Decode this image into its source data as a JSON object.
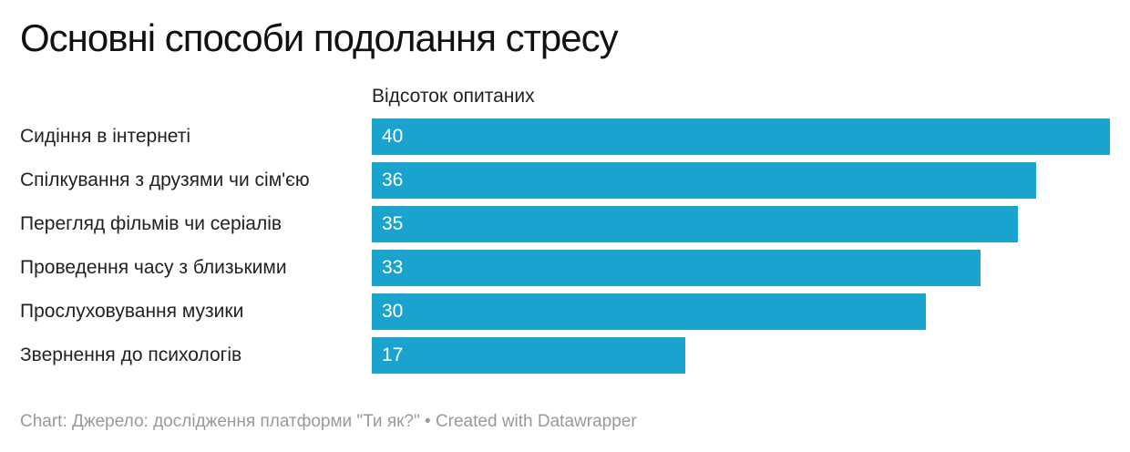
{
  "chart_data": {
    "type": "bar",
    "orientation": "horizontal",
    "title": "Основні способи подолання стресу",
    "column_header": "Відсоток опитаних",
    "categories": [
      "Сидіння в інтернеті",
      "Спілкування з друзями чи сім'єю",
      "Перегляд фільмів чи серіалів",
      "Проведення часу з близькими",
      "Прослуховування музики",
      "Звернення до психологів"
    ],
    "values": [
      40,
      36,
      35,
      33,
      30,
      17
    ],
    "xlim": [
      0,
      40
    ],
    "grid": false,
    "bar_color": "#1aa3cf",
    "value_label_color": "#ffffff"
  },
  "footer": {
    "source_text": "Chart: Джерело: дослідження платформи \"Ти як?\" • Created with Datawrapper"
  }
}
